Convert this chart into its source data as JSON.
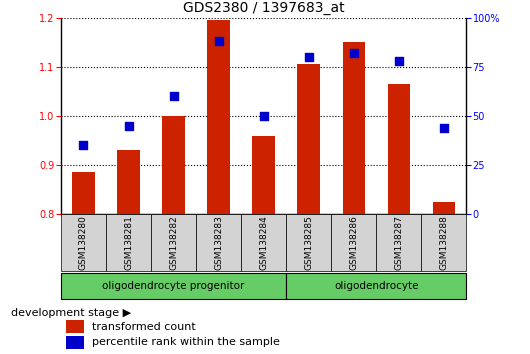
{
  "title": "GDS2380 / 1397683_at",
  "samples": [
    "GSM138280",
    "GSM138281",
    "GSM138282",
    "GSM138283",
    "GSM138284",
    "GSM138285",
    "GSM138286",
    "GSM138287",
    "GSM138288"
  ],
  "transformed_count": [
    0.885,
    0.93,
    1.0,
    1.195,
    0.96,
    1.105,
    1.15,
    1.065,
    0.825
  ],
  "percentile_rank": [
    35,
    45,
    60,
    88,
    50,
    80,
    82,
    78,
    44
  ],
  "ylim_left": [
    0.8,
    1.2
  ],
  "ylim_right": [
    0,
    100
  ],
  "yticks_left": [
    0.8,
    0.9,
    1.0,
    1.1,
    1.2
  ],
  "yticks_right": [
    0,
    25,
    50,
    75,
    100
  ],
  "bar_color": "#cc2200",
  "dot_color": "#0000cc",
  "bar_base": 0.8,
  "bar_width": 0.5,
  "dot_size": 30,
  "legend_bar_label": "transformed count",
  "legend_dot_label": "percentile rank within the sample",
  "dev_stage_label": "development stage",
  "xlabel_group1": "oligodendrocyte progenitor",
  "xlabel_group2": "oligodendrocyte",
  "group1_count": 5,
  "group2_count": 4,
  "cell_color": "#d3d3d3",
  "group_color": "#66cc66",
  "title_fontsize": 10,
  "tick_fontsize": 7,
  "label_fontsize": 8
}
